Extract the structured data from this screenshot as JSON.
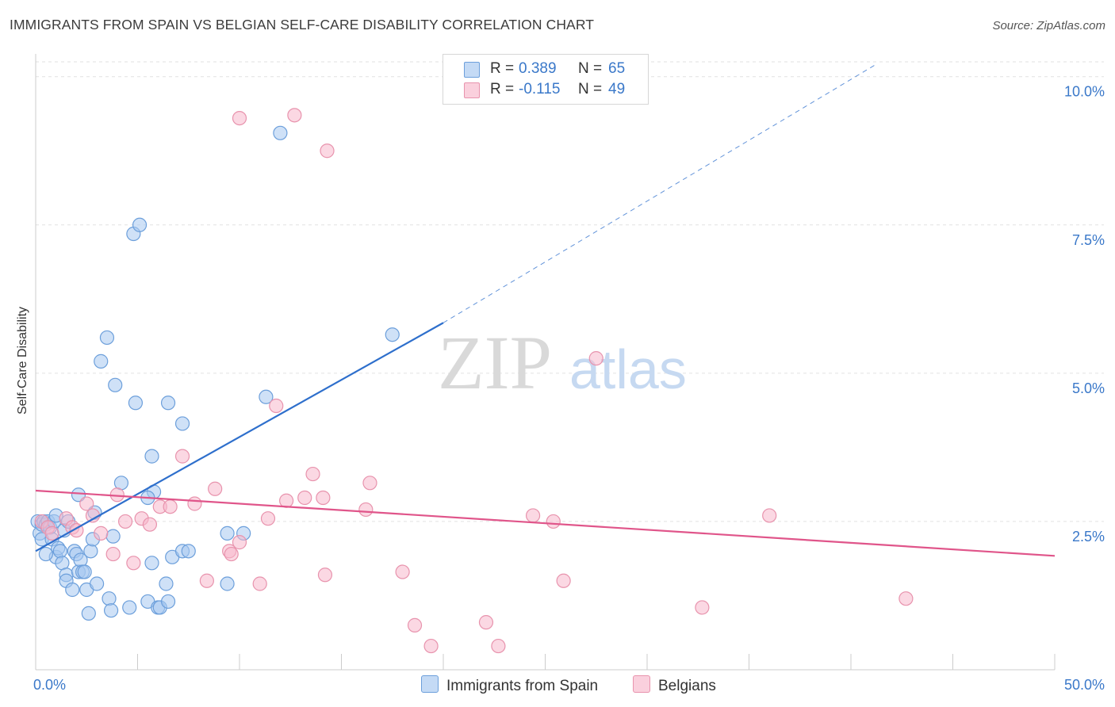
{
  "title": "IMMIGRANTS FROM SPAIN VS BELGIAN SELF-CARE DISABILITY CORRELATION CHART",
  "source": "Source: ZipAtlas.com",
  "watermark": {
    "zip": "ZIP",
    "atlas": "atlas"
  },
  "legend_top": [
    {
      "r_label": "R =",
      "r_value": "0.389",
      "n_label": "N =",
      "n_value": "65",
      "color": "#a8c8f0"
    },
    {
      "r_label": "R =",
      "r_value": "-0.115",
      "n_label": "N =",
      "n_value": "49",
      "color": "#f7b8cc"
    }
  ],
  "chart_data": {
    "type": "scatter",
    "title": "IMMIGRANTS FROM SPAIN VS BELGIAN SELF-CARE DISABILITY CORRELATION CHART",
    "xlabel": "",
    "ylabel": "Self-Care Disability",
    "xlim": [
      0,
      50
    ],
    "ylim": [
      0,
      10.25
    ],
    "x_tick_labels": [
      "0.0%",
      "50.0%"
    ],
    "y_ticks": [
      2.5,
      5.0,
      7.5,
      10.0
    ],
    "y_tick_labels": [
      "2.5%",
      "5.0%",
      "7.5%",
      "10.0%"
    ],
    "grid": "horizontal dashed",
    "legend_position": "top-center and bottom",
    "series": [
      {
        "name": "Immigrants from Spain",
        "color": "#a8c8f0",
        "stroke": "#6c9fdb",
        "trend": {
          "x": [
            0,
            20
          ],
          "y": [
            2.0,
            5.85
          ],
          "extended_to_x": 41.2,
          "extended_y": 10.2,
          "line_color": "#2e6fcc"
        },
        "points": [
          [
            0.1,
            2.5
          ],
          [
            0.2,
            2.3
          ],
          [
            0.3,
            2.2
          ],
          [
            0.3,
            2.45
          ],
          [
            0.4,
            2.5
          ],
          [
            0.5,
            2.45
          ],
          [
            0.6,
            2.5
          ],
          [
            0.7,
            2.4
          ],
          [
            0.8,
            2.2
          ],
          [
            0.9,
            2.5
          ],
          [
            1.0,
            2.6
          ],
          [
            1.0,
            1.9
          ],
          [
            1.1,
            2.05
          ],
          [
            1.2,
            2.0
          ],
          [
            1.3,
            1.8
          ],
          [
            1.4,
            2.35
          ],
          [
            1.5,
            1.6
          ],
          [
            1.5,
            1.5
          ],
          [
            1.6,
            2.5
          ],
          [
            1.8,
            1.35
          ],
          [
            1.9,
            2.0
          ],
          [
            2.0,
            1.95
          ],
          [
            2.1,
            1.65
          ],
          [
            2.2,
            1.85
          ],
          [
            2.3,
            1.65
          ],
          [
            2.4,
            1.65
          ],
          [
            2.5,
            1.35
          ],
          [
            2.6,
            0.95
          ],
          [
            2.7,
            2.0
          ],
          [
            2.8,
            2.2
          ],
          [
            2.9,
            2.65
          ],
          [
            3.0,
            1.45
          ],
          [
            3.2,
            5.2
          ],
          [
            3.5,
            5.6
          ],
          [
            3.6,
            1.2
          ],
          [
            3.7,
            1.0
          ],
          [
            3.8,
            2.25
          ],
          [
            3.9,
            4.8
          ],
          [
            4.2,
            3.15
          ],
          [
            4.6,
            1.05
          ],
          [
            4.8,
            7.35
          ],
          [
            4.9,
            4.5
          ],
          [
            5.1,
            7.5
          ],
          [
            5.5,
            1.15
          ],
          [
            5.7,
            1.8
          ],
          [
            5.7,
            3.6
          ],
          [
            5.8,
            3.0
          ],
          [
            5.5,
            2.9
          ],
          [
            6.0,
            1.05
          ],
          [
            6.1,
            1.05
          ],
          [
            6.4,
            1.45
          ],
          [
            6.5,
            1.15
          ],
          [
            6.5,
            4.5
          ],
          [
            6.7,
            1.9
          ],
          [
            7.2,
            4.15
          ],
          [
            7.2,
            2.0
          ],
          [
            7.5,
            2.0
          ],
          [
            9.4,
            1.45
          ],
          [
            9.4,
            2.3
          ],
          [
            10.2,
            2.3
          ],
          [
            11.3,
            4.6
          ],
          [
            12.0,
            9.05
          ],
          [
            17.5,
            5.65
          ],
          [
            2.1,
            2.95
          ],
          [
            0.5,
            1.95
          ]
        ]
      },
      {
        "name": "Belgians",
        "color": "#f7b8cc",
        "stroke": "#e893ad",
        "trend": {
          "x": [
            0,
            50
          ],
          "y": [
            3.02,
            1.92
          ],
          "line_color": "#e0558a"
        },
        "points": [
          [
            0.3,
            2.5
          ],
          [
            0.6,
            2.4
          ],
          [
            0.8,
            2.3
          ],
          [
            1.5,
            2.55
          ],
          [
            1.8,
            2.4
          ],
          [
            2.0,
            2.35
          ],
          [
            2.5,
            2.8
          ],
          [
            2.8,
            2.6
          ],
          [
            3.2,
            2.3
          ],
          [
            3.8,
            1.95
          ],
          [
            4.0,
            2.95
          ],
          [
            4.4,
            2.5
          ],
          [
            4.8,
            1.8
          ],
          [
            5.2,
            2.55
          ],
          [
            5.6,
            2.45
          ],
          [
            6.1,
            2.75
          ],
          [
            6.6,
            2.75
          ],
          [
            7.2,
            3.6
          ],
          [
            7.8,
            2.8
          ],
          [
            8.4,
            1.5
          ],
          [
            8.8,
            3.05
          ],
          [
            9.5,
            2.0
          ],
          [
            9.6,
            1.95
          ],
          [
            10.0,
            2.15
          ],
          [
            10.0,
            9.3
          ],
          [
            11.0,
            1.45
          ],
          [
            11.4,
            2.55
          ],
          [
            11.8,
            4.45
          ],
          [
            12.3,
            2.85
          ],
          [
            12.7,
            9.35
          ],
          [
            13.2,
            2.9
          ],
          [
            13.6,
            3.3
          ],
          [
            14.1,
            2.9
          ],
          [
            14.2,
            1.6
          ],
          [
            14.3,
            8.75
          ],
          [
            16.2,
            2.7
          ],
          [
            16.4,
            3.15
          ],
          [
            18.0,
            1.65
          ],
          [
            18.6,
            0.75
          ],
          [
            19.4,
            0.4
          ],
          [
            22.1,
            0.8
          ],
          [
            22.7,
            0.4
          ],
          [
            24.4,
            2.6
          ],
          [
            25.4,
            2.5
          ],
          [
            25.9,
            1.5
          ],
          [
            27.5,
            5.25
          ],
          [
            32.7,
            1.05
          ],
          [
            36.0,
            2.6
          ],
          [
            42.7,
            1.2
          ]
        ]
      }
    ]
  },
  "bottom_legend": [
    {
      "label": "Immigrants from Spain",
      "color": "#a8c8f0"
    },
    {
      "label": "Belgians",
      "color": "#f7b8cc"
    }
  ]
}
